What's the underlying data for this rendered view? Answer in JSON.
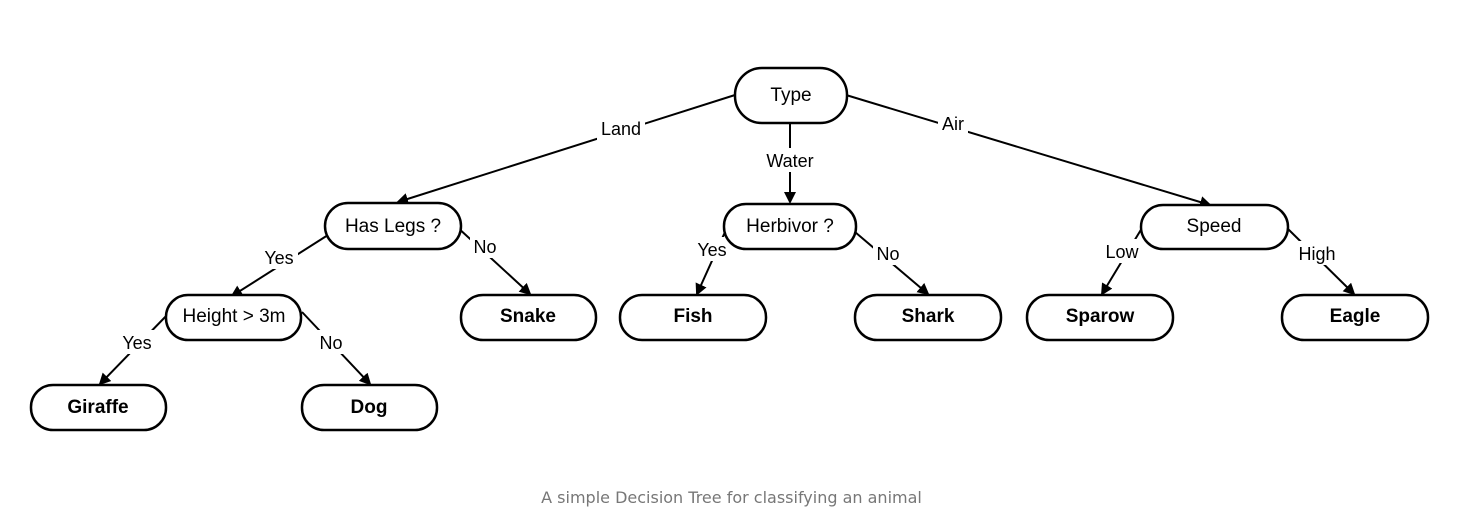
{
  "diagram": {
    "nodes": [
      {
        "id": "type",
        "label": "Type",
        "kind": "decision"
      },
      {
        "id": "has_legs",
        "label": "Has Legs ?",
        "kind": "decision"
      },
      {
        "id": "herbivor",
        "label": "Herbivor ?",
        "kind": "decision"
      },
      {
        "id": "speed",
        "label": "Speed",
        "kind": "decision"
      },
      {
        "id": "height",
        "label": "Height > 3m",
        "kind": "decision"
      },
      {
        "id": "snake",
        "label": "Snake",
        "kind": "leaf"
      },
      {
        "id": "fish",
        "label": "Fish",
        "kind": "leaf"
      },
      {
        "id": "shark",
        "label": "Shark",
        "kind": "leaf"
      },
      {
        "id": "sparow",
        "label": "Sparow",
        "kind": "leaf"
      },
      {
        "id": "eagle",
        "label": "Eagle",
        "kind": "leaf"
      },
      {
        "id": "giraffe",
        "label": "Giraffe",
        "kind": "leaf"
      },
      {
        "id": "dog",
        "label": "Dog",
        "kind": "leaf"
      }
    ],
    "edges": [
      {
        "id": "type-land",
        "from": "type",
        "to": "has_legs",
        "label": "Land"
      },
      {
        "id": "type-water",
        "from": "type",
        "to": "herbivor",
        "label": "Water"
      },
      {
        "id": "type-air",
        "from": "type",
        "to": "speed",
        "label": "Air"
      },
      {
        "id": "legs-yes",
        "from": "has_legs",
        "to": "height",
        "label": "Yes"
      },
      {
        "id": "legs-no",
        "from": "has_legs",
        "to": "snake",
        "label": "No"
      },
      {
        "id": "herb-yes",
        "from": "herbivor",
        "to": "fish",
        "label": "Yes"
      },
      {
        "id": "herb-no",
        "from": "herbivor",
        "to": "shark",
        "label": "No"
      },
      {
        "id": "speed-low",
        "from": "speed",
        "to": "sparow",
        "label": "Low"
      },
      {
        "id": "speed-high",
        "from": "speed",
        "to": "eagle",
        "label": "High"
      },
      {
        "id": "height-yes",
        "from": "height",
        "to": "giraffe",
        "label": "Yes"
      },
      {
        "id": "height-no",
        "from": "height",
        "to": "dog",
        "label": "No"
      }
    ]
  },
  "caption": "A simple Decision Tree for classifying an animal",
  "colors": {
    "stroke": "#000000",
    "caption": "#777777"
  }
}
